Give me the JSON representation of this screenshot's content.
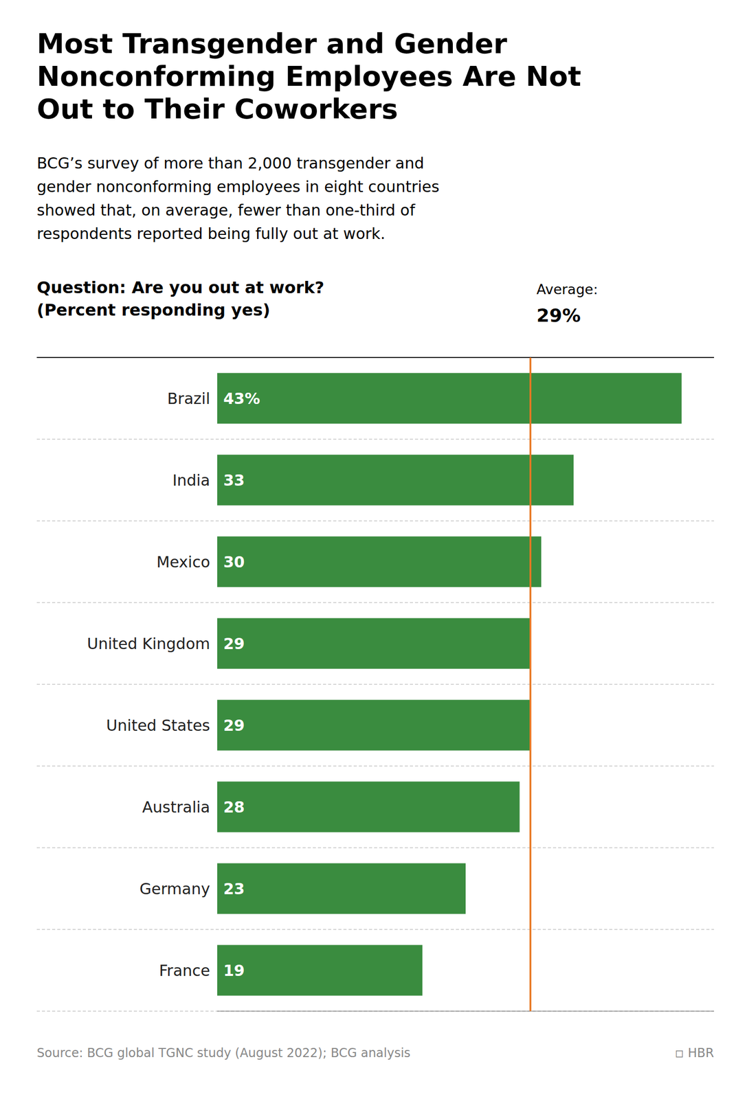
{
  "chart_data": {
    "type": "bar",
    "orientation": "horizontal",
    "title": "Most Transgender and Gender\nNonconforming Employees Are Not\nOut to Their Coworkers",
    "subtitle": "BCG’s survey of more than 2,000 transgender and\ngender nonconforming employees in eight countries\nshowed that, on average, fewer than one-third of\nrespondents reported being fully out at work.",
    "annotations": [
      "Question: Are you out at work?\n(Percent responding yes)",
      "◽ HBR"
    ],
    "source": "Source: BCG global TGNC study (August 2022); BCG analysis",
    "categories": [
      "Brazil",
      "India",
      "Mexico",
      "United Kingdom",
      "United States",
      "Australia",
      "Germany",
      "France"
    ],
    "values": [
      43,
      33,
      30,
      29,
      29,
      28,
      23,
      19
    ],
    "value_labels": [
      "43%",
      "33",
      "30",
      "29",
      "29",
      "28",
      "23",
      "19"
    ],
    "data_labels": true,
    "color": "#3a8c3f",
    "xlim": [
      0,
      46
    ],
    "tick_labels": "y",
    "reference_line": {
      "value": 29,
      "label": "Average:",
      "value_label": "29%",
      "color": "#e87722"
    }
  }
}
